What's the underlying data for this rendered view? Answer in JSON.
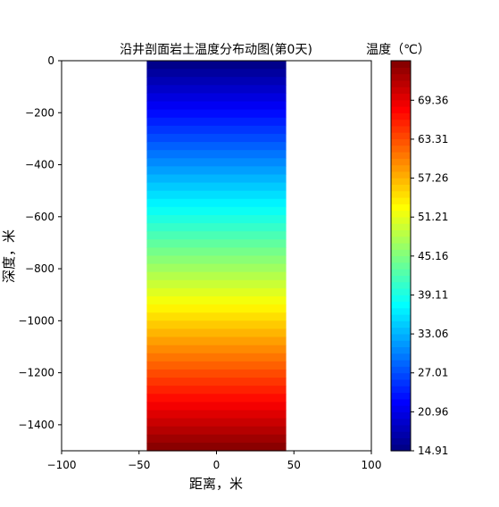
{
  "chart_data": {
    "type": "heatmap",
    "title": "沿井剖面岩土温度分布动图(第0天)",
    "xlabel": "距离，米",
    "ylabel": "深度，米",
    "xlim": [
      -100,
      100
    ],
    "ylim": [
      -1500,
      0
    ],
    "x_ticks": [
      -100,
      -50,
      0,
      50,
      100
    ],
    "y_ticks": [
      0,
      -200,
      -400,
      -600,
      -800,
      -1000,
      -1200,
      -1400
    ],
    "field_x_extent": [
      -45,
      45
    ],
    "field_depth_extent": [
      0,
      -1500
    ],
    "field_temperature_top": 14.91,
    "field_temperature_bottom": 75.5,
    "colormap": "jet",
    "grid": false,
    "colorbar": {
      "label": "温度（℃）",
      "min": 14.91,
      "max": 75.5,
      "ticks": [
        14.91,
        20.96,
        27.01,
        33.06,
        39.11,
        45.16,
        51.21,
        57.26,
        63.31,
        69.36
      ]
    }
  }
}
